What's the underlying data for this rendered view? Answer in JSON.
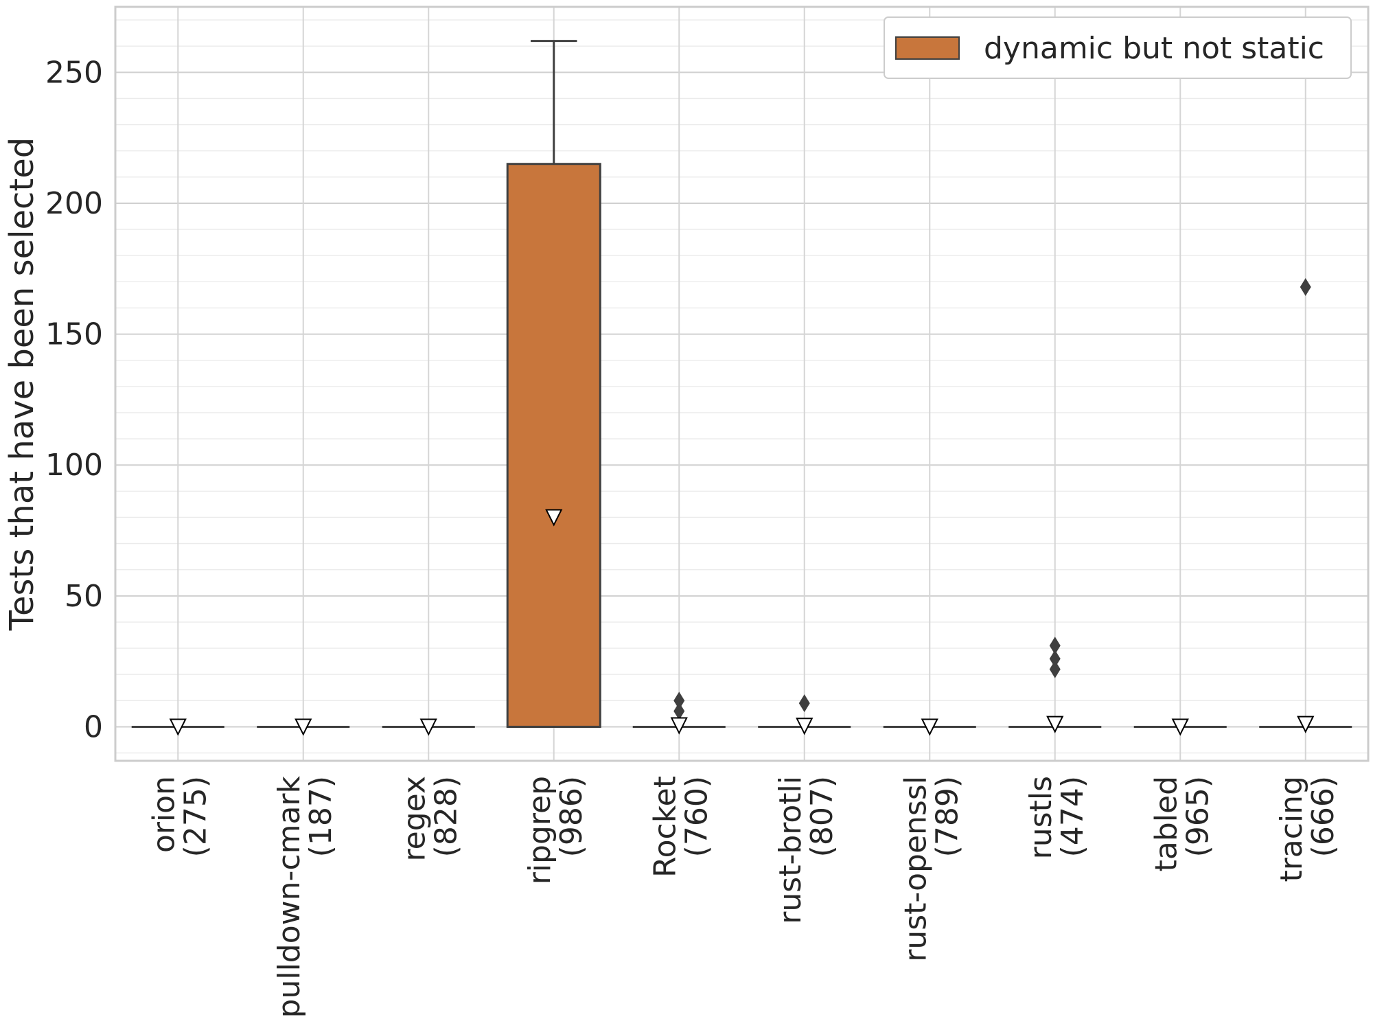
{
  "chart_data": {
    "type": "box",
    "ylabel": "Tests that have been selected",
    "ylim": [
      -13,
      275
    ],
    "ytick_labels": [
      "0",
      "50",
      "100",
      "150",
      "200",
      "250"
    ],
    "grid": true,
    "legend": {
      "placement": "top-right",
      "entries": [
        {
          "label": "dynamic but not static",
          "color": "#c8763c"
        }
      ]
    },
    "categories": [
      {
        "name": "orion",
        "count": "(275)"
      },
      {
        "name": "pulldown-cmark",
        "count": "(187)"
      },
      {
        "name": "regex",
        "count": "(828)"
      },
      {
        "name": "ripgrep",
        "count": "(986)"
      },
      {
        "name": "Rocket",
        "count": "(760)"
      },
      {
        "name": "rust-brotli",
        "count": "(807)"
      },
      {
        "name": "rust-openssl",
        "count": "(789)"
      },
      {
        "name": "rustls",
        "count": "(474)"
      },
      {
        "name": "tabled",
        "count": "(965)"
      },
      {
        "name": "tracing",
        "count": "(666)"
      }
    ],
    "series": [
      {
        "color": "#c8763c",
        "boxes": [
          {
            "q1": 0,
            "median": 0,
            "q3": 0,
            "whisker_low": 0,
            "whisker_high": 0,
            "mean": 0,
            "outliers": []
          },
          {
            "q1": 0,
            "median": 0,
            "q3": 0,
            "whisker_low": 0,
            "whisker_high": 0,
            "mean": 0,
            "outliers": []
          },
          {
            "q1": 0,
            "median": 0,
            "q3": 0,
            "whisker_low": 0,
            "whisker_high": 0,
            "mean": 0,
            "outliers": []
          },
          {
            "q1": 0,
            "median": 0,
            "q3": 215,
            "whisker_low": 0,
            "whisker_high": 262,
            "mean": 80,
            "outliers": []
          },
          {
            "q1": 0,
            "median": 0,
            "q3": 0,
            "whisker_low": 0,
            "whisker_high": 0,
            "mean": 0.5,
            "outliers": [
              6,
              10
            ]
          },
          {
            "q1": 0,
            "median": 0,
            "q3": 0,
            "whisker_low": 0,
            "whisker_high": 0,
            "mean": 0.3,
            "outliers": [
              9
            ]
          },
          {
            "q1": 0,
            "median": 0,
            "q3": 0,
            "whisker_low": 0,
            "whisker_high": 0,
            "mean": 0,
            "outliers": []
          },
          {
            "q1": 0,
            "median": 0,
            "q3": 0,
            "whisker_low": 0,
            "whisker_high": 0,
            "mean": 1,
            "outliers": [
              22,
              26,
              31
            ]
          },
          {
            "q1": 0,
            "median": 0,
            "q3": 0,
            "whisker_low": 0,
            "whisker_high": 0,
            "mean": 0,
            "outliers": []
          },
          {
            "q1": 0,
            "median": 0,
            "q3": 0,
            "whisker_low": 0,
            "whisker_high": 0,
            "mean": 1,
            "outliers": [
              168
            ]
          }
        ]
      }
    ]
  }
}
